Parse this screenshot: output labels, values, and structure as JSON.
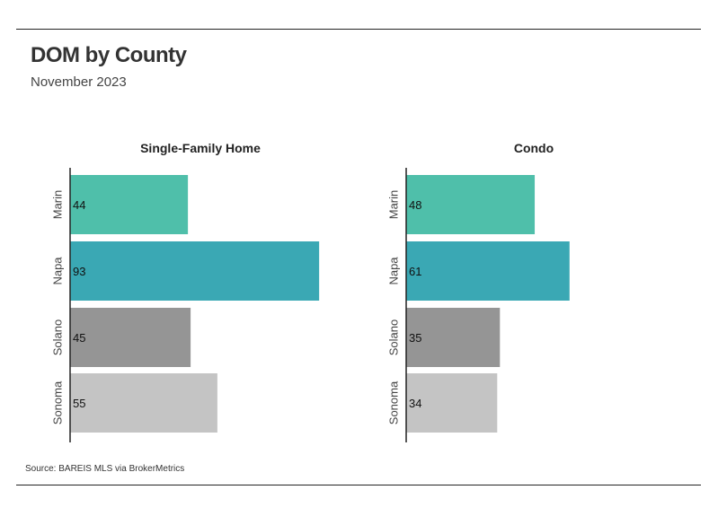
{
  "header": {
    "title": "DOM by County",
    "subtitle": "November 2023"
  },
  "footer": {
    "source": "Source:  BAREIS MLS via BrokerMetrics"
  },
  "colors": {
    "Marin": "#4fbfaa",
    "Napa": "#3aa8b4",
    "Solano": "#959595",
    "Sonoma": "#c4c4c4"
  },
  "chart_data": [
    {
      "type": "bar",
      "orientation": "horizontal",
      "title": "Single-Family Home",
      "categories": [
        "Marin",
        "Napa",
        "Solano",
        "Sonoma"
      ],
      "values": [
        44,
        93,
        45,
        55
      ],
      "xlim": [
        0,
        100
      ]
    },
    {
      "type": "bar",
      "orientation": "horizontal",
      "title": "Condo",
      "categories": [
        "Marin",
        "Napa",
        "Solano",
        "Sonoma"
      ],
      "values": [
        48,
        61,
        35,
        34
      ],
      "xlim": [
        0,
        100
      ]
    }
  ]
}
